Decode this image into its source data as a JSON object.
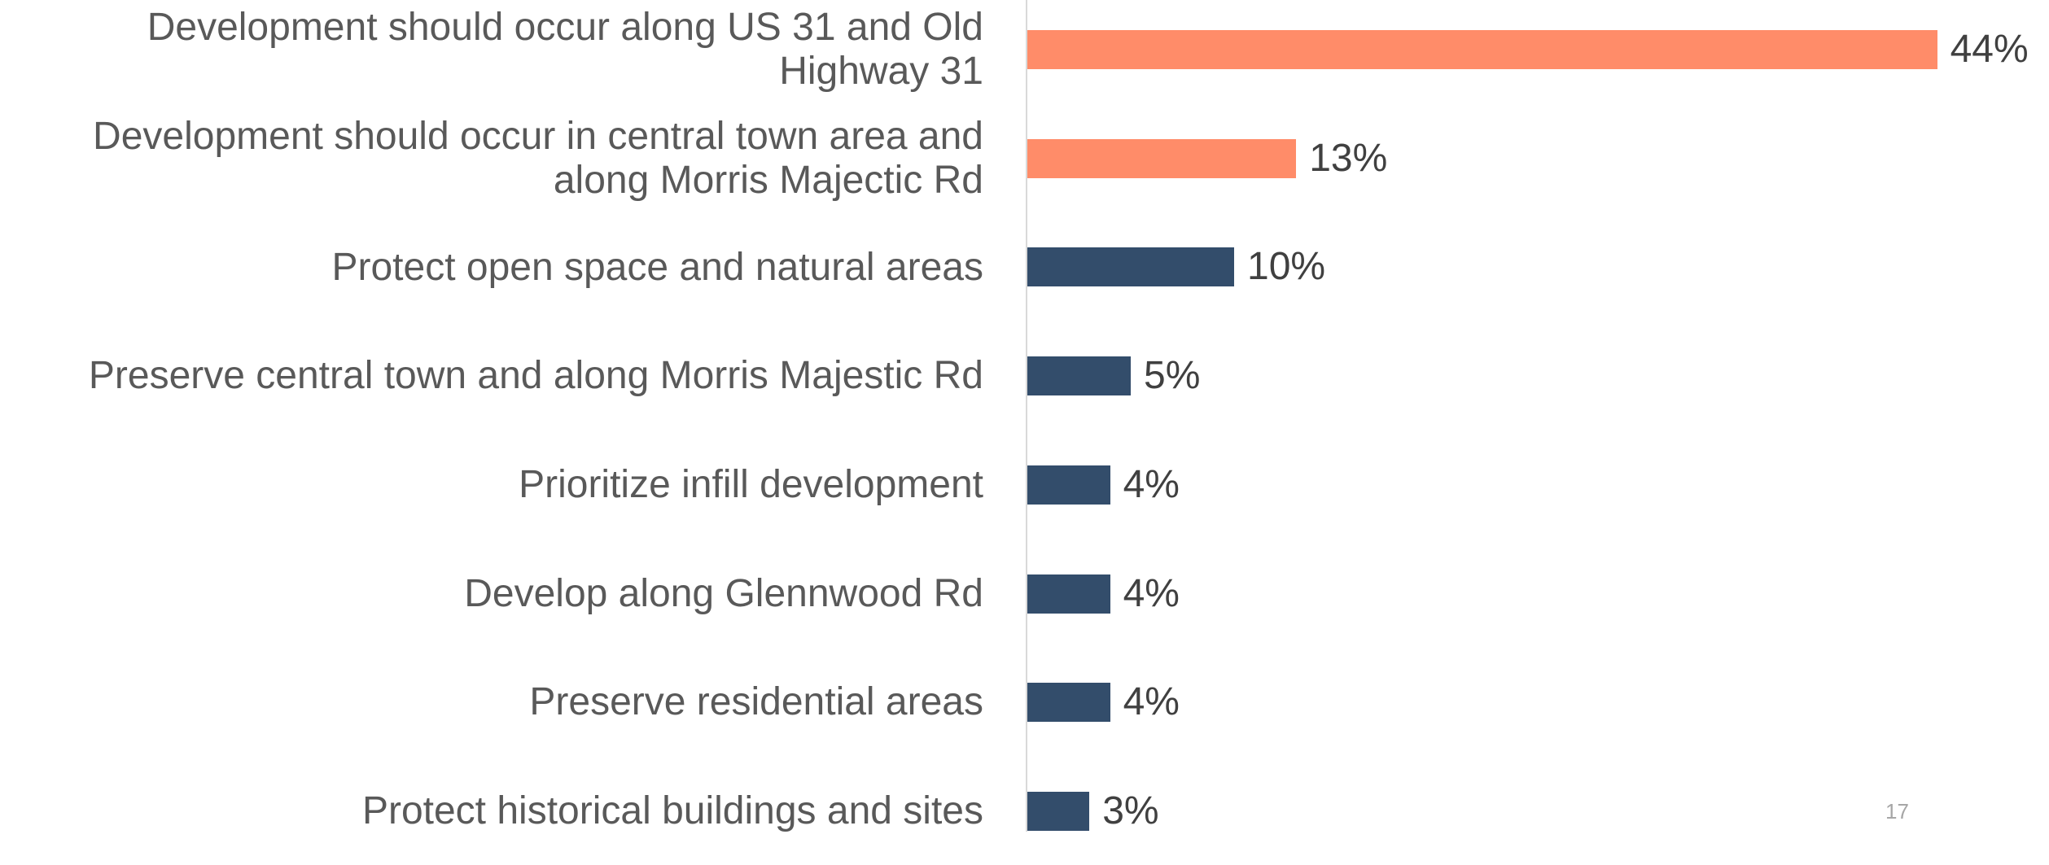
{
  "chart_data": {
    "type": "bar",
    "orientation": "horizontal",
    "categories": [
      "Development should occur along US 31 and Old Highway 31",
      "Development should occur in central town area and along Morris Majectic Rd",
      "Protect open space and natural areas",
      "Preserve central town and along Morris Majestic Rd",
      "Prioritize infill development",
      "Develop along Glennwood Rd",
      "Preserve residential areas",
      "Protect historical buildings and sites"
    ],
    "values": [
      44,
      13,
      10,
      5,
      4,
      4,
      4,
      3
    ],
    "value_labels": [
      "44%",
      "13%",
      "10%",
      "5%",
      "4%",
      "4%",
      "4%",
      "3%"
    ],
    "colors": [
      "#ff8c69",
      "#ff8c69",
      "#334d6b",
      "#334d6b",
      "#334d6b",
      "#334d6b",
      "#334d6b",
      "#334d6b"
    ]
  },
  "page_number": "17"
}
